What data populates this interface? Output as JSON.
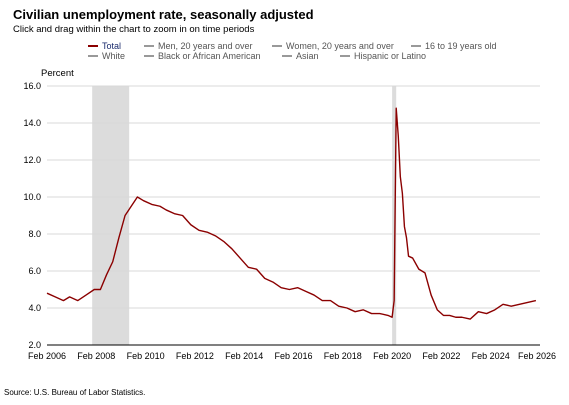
{
  "header": {
    "title": "Civilian unemployment rate, seasonally adjusted",
    "subtitle": "Click and drag within the chart to zoom in on time periods"
  },
  "legend": [
    {
      "label": "Total",
      "active": true
    },
    {
      "label": "Men, 20 years and over",
      "active": false
    },
    {
      "label": "Women, 20 years and over",
      "active": false
    },
    {
      "label": "16 to 19 years old",
      "active": false
    },
    {
      "label": "White",
      "active": false
    },
    {
      "label": "Black or African American",
      "active": false
    },
    {
      "label": "Asian",
      "active": false
    },
    {
      "label": "Hispanic or Latino",
      "active": false
    }
  ],
  "colors": {
    "series": "#8b0000",
    "recession": "#dcdcdc",
    "grid": "#d8d8d8",
    "legend_active": "#1a2b6d"
  },
  "source": "Source: U.S. Bureau of Labor Statistics.",
  "chart_data": {
    "type": "line",
    "ylabel": "Percent",
    "ylim": [
      2.0,
      16.0
    ],
    "xlim": [
      "2006-02",
      "2026-02"
    ],
    "yticks": [
      "2.0",
      "4.0",
      "6.0",
      "8.0",
      "10.0",
      "12.0",
      "14.0",
      "16.0"
    ],
    "xticks": [
      "Feb 2006",
      "Feb 2008",
      "Feb 2010",
      "Feb 2012",
      "Feb 2014",
      "Feb 2016",
      "Feb 2018",
      "Feb 2020",
      "Feb 2022",
      "Feb 2024",
      "Feb 2026"
    ],
    "grid": "horizontal",
    "recessions": [
      [
        "2007-12",
        "2009-06"
      ],
      [
        "2020-02",
        "2020-04"
      ]
    ],
    "series": [
      {
        "name": "Total",
        "x": [
          "2006-02",
          "2006-06",
          "2006-10",
          "2007-01",
          "2007-05",
          "2007-09",
          "2008-01",
          "2008-04",
          "2008-07",
          "2008-10",
          "2009-01",
          "2009-04",
          "2009-07",
          "2009-10",
          "2010-01",
          "2010-05",
          "2010-09",
          "2010-12",
          "2011-04",
          "2011-08",
          "2011-12",
          "2012-04",
          "2012-08",
          "2012-12",
          "2013-04",
          "2013-08",
          "2013-12",
          "2014-04",
          "2014-08",
          "2014-12",
          "2015-04",
          "2015-08",
          "2015-12",
          "2016-04",
          "2016-08",
          "2016-12",
          "2017-04",
          "2017-08",
          "2017-12",
          "2018-04",
          "2018-08",
          "2018-12",
          "2019-04",
          "2019-08",
          "2019-12",
          "2020-02",
          "2020-03",
          "2020-04",
          "2020-05",
          "2020-06",
          "2020-07",
          "2020-08",
          "2020-09",
          "2020-10",
          "2020-12",
          "2021-03",
          "2021-06",
          "2021-09",
          "2021-12",
          "2022-03",
          "2022-06",
          "2022-09",
          "2022-12",
          "2023-04",
          "2023-08",
          "2023-12",
          "2024-04",
          "2024-08",
          "2024-12",
          "2025-04",
          "2025-08",
          "2025-12"
        ],
        "values": [
          4.8,
          4.6,
          4.4,
          4.6,
          4.4,
          4.7,
          5.0,
          5.0,
          5.8,
          6.5,
          7.8,
          9.0,
          9.5,
          10.0,
          9.8,
          9.6,
          9.5,
          9.3,
          9.1,
          9.0,
          8.5,
          8.2,
          8.1,
          7.9,
          7.6,
          7.2,
          6.7,
          6.2,
          6.1,
          5.6,
          5.4,
          5.1,
          5.0,
          5.1,
          4.9,
          4.7,
          4.4,
          4.4,
          4.1,
          4.0,
          3.8,
          3.9,
          3.7,
          3.7,
          3.6,
          3.5,
          4.4,
          14.8,
          13.3,
          11.1,
          10.2,
          8.4,
          7.8,
          6.8,
          6.7,
          6.1,
          5.9,
          4.7,
          3.9,
          3.6,
          3.6,
          3.5,
          3.5,
          3.4,
          3.8,
          3.7,
          3.9,
          4.2,
          4.1,
          4.2,
          4.3,
          4.4
        ]
      }
    ]
  }
}
